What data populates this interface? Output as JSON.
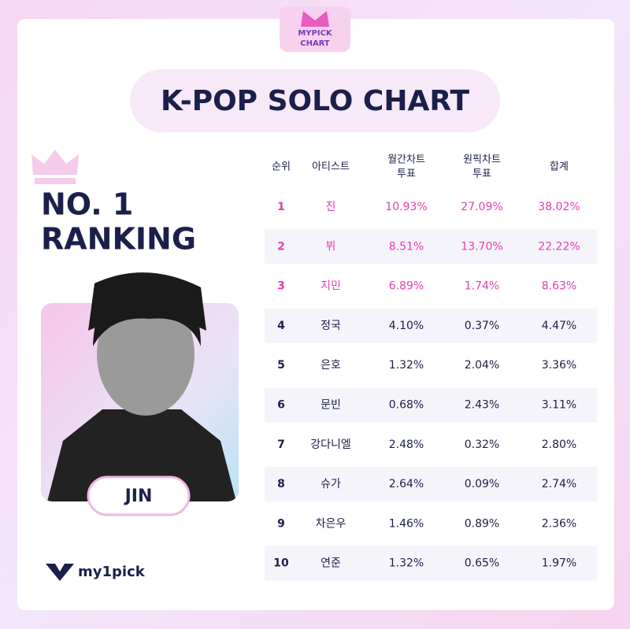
{
  "logo": {
    "lines": [
      "MYPICK",
      "CHART"
    ]
  },
  "title": "K-POP SOLO CHART",
  "feature": {
    "line1": "NO. 1",
    "line2": "RANKING",
    "artist": "JIN"
  },
  "brand": "my1pick",
  "table": {
    "header": [
      "순위",
      "아티스트",
      [
        "월간차트",
        "투표"
      ],
      [
        "원픽차트",
        "투표"
      ],
      "합계"
    ],
    "rows": [
      [
        "1",
        "진",
        "10.93%",
        "27.09%",
        "38.02%"
      ],
      [
        "2",
        "뷔",
        "8.51%",
        "13.70%",
        "22.22%"
      ],
      [
        "3",
        "지민",
        "6.89%",
        "1.74%",
        "8.63%"
      ],
      [
        "4",
        "정국",
        "4.10%",
        "0.37%",
        "4.47%"
      ],
      [
        "5",
        "은호",
        "1.32%",
        "2.04%",
        "3.36%"
      ],
      [
        "6",
        "문빈",
        "0.68%",
        "2.43%",
        "3.11%"
      ],
      [
        "7",
        "강다니엘",
        "2.48%",
        "0.32%",
        "2.80%"
      ],
      [
        "8",
        "슈가",
        "2.64%",
        "0.09%",
        "2.74%"
      ],
      [
        "9",
        "차은우",
        "1.46%",
        "0.89%",
        "2.36%"
      ],
      [
        "10",
        "연준",
        "1.32%",
        "0.65%",
        "1.97%"
      ]
    ]
  }
}
